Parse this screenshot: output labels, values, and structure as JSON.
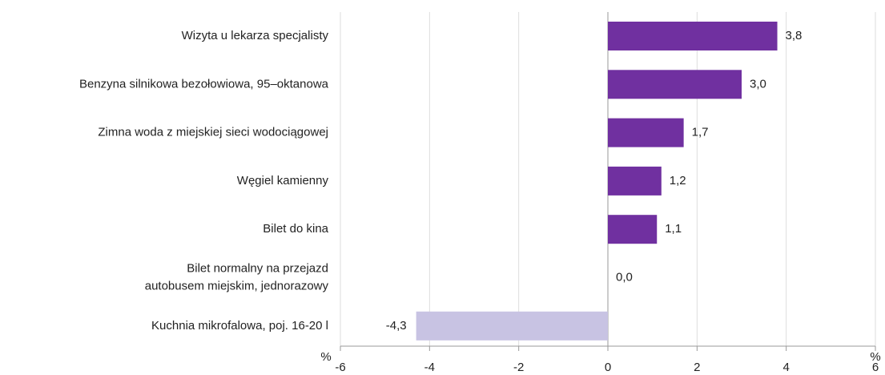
{
  "chart_data": {
    "type": "bar",
    "orientation": "horizontal",
    "categories": [
      "Wizyta u lekarza specjalisty",
      "Benzyna silnikowa bezołowiowa, 95–oktanowa",
      "Zimna woda z miejskiej sieci wodociągowej",
      "Węgiel kamienny",
      "Bilet do kina",
      "Bilet normalny na przejazd\nautobusem  miejskim,  jednorazowy",
      "Kuchnia mikrofalowa, poj. 16-20 l"
    ],
    "values": [
      3.8,
      3.0,
      1.7,
      1.2,
      1.1,
      0.0,
      -4.3
    ],
    "value_labels": [
      "3,8",
      "3,0",
      "1,7",
      "1,2",
      "1,1",
      "0,0",
      "-4,3"
    ],
    "colors": [
      "#7030a0",
      "#7030a0",
      "#7030a0",
      "#7030a0",
      "#7030a0",
      "#7030a0",
      "#c8c3e3"
    ],
    "x_unit": "%",
    "xlim": [
      -6,
      6
    ],
    "xticks": [
      -6,
      -4,
      -2,
      0,
      2,
      4,
      6
    ],
    "grid": true
  }
}
